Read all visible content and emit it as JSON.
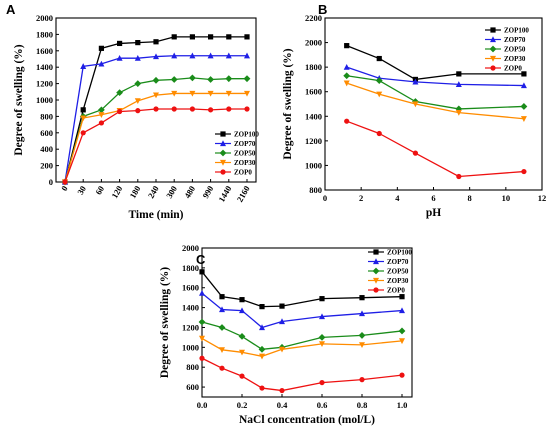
{
  "series_colors": {
    "ZOP100": "#000000",
    "ZOP70": "#1f1fe6",
    "ZOP50": "#1a8c1a",
    "ZOP30": "#ff8c00",
    "ZOP0": "#ee1111"
  },
  "series_markers": {
    "ZOP100": "square",
    "ZOP70": "triangle-up",
    "ZOP50": "diamond",
    "ZOP30": "triangle-down",
    "ZOP0": "circle"
  },
  "chart_data": [
    {
      "panel": "A",
      "type": "line",
      "xlabel": "Time (min)",
      "ylabel": "Degree of swelling (%)",
      "x_scale": "categorical",
      "categories": [
        "0",
        "30",
        "60",
        "120",
        "180",
        "240",
        "300",
        "480",
        "990",
        "1440",
        "2160"
      ],
      "ylim": [
        0,
        2000
      ],
      "yticks": [
        "0",
        "200",
        "400",
        "600",
        "800",
        "1000",
        "1200",
        "1400",
        "1600",
        "1800",
        "2000"
      ],
      "legend_position": "lower-right",
      "series": [
        {
          "name": "ZOP100",
          "values": [
            0,
            880,
            1630,
            1690,
            1700,
            1710,
            1770,
            1770,
            1770,
            1770,
            1770
          ]
        },
        {
          "name": "ZOP70",
          "values": [
            0,
            1410,
            1440,
            1510,
            1510,
            1530,
            1540,
            1540,
            1540,
            1540,
            1540
          ]
        },
        {
          "name": "ZOP50",
          "values": [
            0,
            800,
            880,
            1090,
            1200,
            1240,
            1250,
            1270,
            1250,
            1260,
            1260
          ]
        },
        {
          "name": "ZOP30",
          "values": [
            0,
            780,
            820,
            870,
            990,
            1060,
            1080,
            1080,
            1080,
            1080,
            1080
          ]
        },
        {
          "name": "ZOP0",
          "values": [
            0,
            600,
            720,
            860,
            870,
            890,
            890,
            890,
            880,
            890,
            890
          ]
        }
      ]
    },
    {
      "panel": "B",
      "type": "line",
      "xlabel": "pH",
      "ylabel": "Degree of swelling (%)",
      "xlim": [
        0,
        12
      ],
      "xticks": [
        "0",
        "2",
        "4",
        "6",
        "8",
        "10",
        "12"
      ],
      "ylim": [
        800,
        2200
      ],
      "yticks": [
        "800",
        "1000",
        "1200",
        "1400",
        "1600",
        "1800",
        "2000",
        "2200"
      ],
      "legend_position": "top-right",
      "series": [
        {
          "name": "ZOP100",
          "x": [
            1.2,
            3,
            5,
            7.4,
            11
          ],
          "values": [
            1975,
            1870,
            1700,
            1745,
            1745
          ]
        },
        {
          "name": "ZOP70",
          "x": [
            1.2,
            3,
            5,
            7.4,
            11
          ],
          "values": [
            1800,
            1710,
            1680,
            1660,
            1650
          ]
        },
        {
          "name": "ZOP50",
          "x": [
            1.2,
            3,
            5,
            7.4,
            11
          ],
          "values": [
            1730,
            1690,
            1520,
            1460,
            1480
          ]
        },
        {
          "name": "ZOP30",
          "x": [
            1.2,
            3,
            5,
            7.4,
            11
          ],
          "values": [
            1670,
            1580,
            1500,
            1430,
            1380
          ]
        },
        {
          "name": "ZOP0",
          "x": [
            1.2,
            3,
            5,
            7.4,
            11
          ],
          "values": [
            1360,
            1260,
            1100,
            910,
            950
          ]
        }
      ]
    },
    {
      "panel": "C",
      "type": "line",
      "xlabel": "NaCl concentration (mol/L)",
      "ylabel": "Degree of swelling (%)",
      "xlim": [
        0,
        1.05
      ],
      "xticks": [
        "0.0",
        "0.2",
        "0.4",
        "0.6",
        "0.8",
        "1.0"
      ],
      "ylim": [
        500,
        2000
      ],
      "yticks": [
        "600",
        "800",
        "1000",
        "1200",
        "1400",
        "1600",
        "1800",
        "2000"
      ],
      "legend_position": "top-right",
      "series": [
        {
          "name": "ZOP100",
          "x": [
            0,
            0.1,
            0.2,
            0.3,
            0.4,
            0.6,
            0.8,
            1.0
          ],
          "values": [
            1760,
            1510,
            1480,
            1410,
            1415,
            1490,
            1500,
            1510
          ]
        },
        {
          "name": "ZOP70",
          "x": [
            0,
            0.1,
            0.2,
            0.3,
            0.4,
            0.6,
            0.8,
            1.0
          ],
          "values": [
            1545,
            1380,
            1370,
            1200,
            1260,
            1310,
            1340,
            1370
          ]
        },
        {
          "name": "ZOP50",
          "x": [
            0,
            0.1,
            0.2,
            0.3,
            0.4,
            0.6,
            0.8,
            1.0
          ],
          "values": [
            1255,
            1200,
            1110,
            980,
            1000,
            1100,
            1120,
            1165
          ]
        },
        {
          "name": "ZOP30",
          "x": [
            0,
            0.1,
            0.2,
            0.3,
            0.4,
            0.6,
            0.8,
            1.0
          ],
          "values": [
            1090,
            975,
            950,
            910,
            980,
            1035,
            1025,
            1065
          ]
        },
        {
          "name": "ZOP0",
          "x": [
            0,
            0.1,
            0.2,
            0.3,
            0.4,
            0.6,
            0.8,
            1.0
          ],
          "values": [
            890,
            790,
            710,
            590,
            565,
            645,
            675,
            720
          ]
        }
      ]
    }
  ]
}
